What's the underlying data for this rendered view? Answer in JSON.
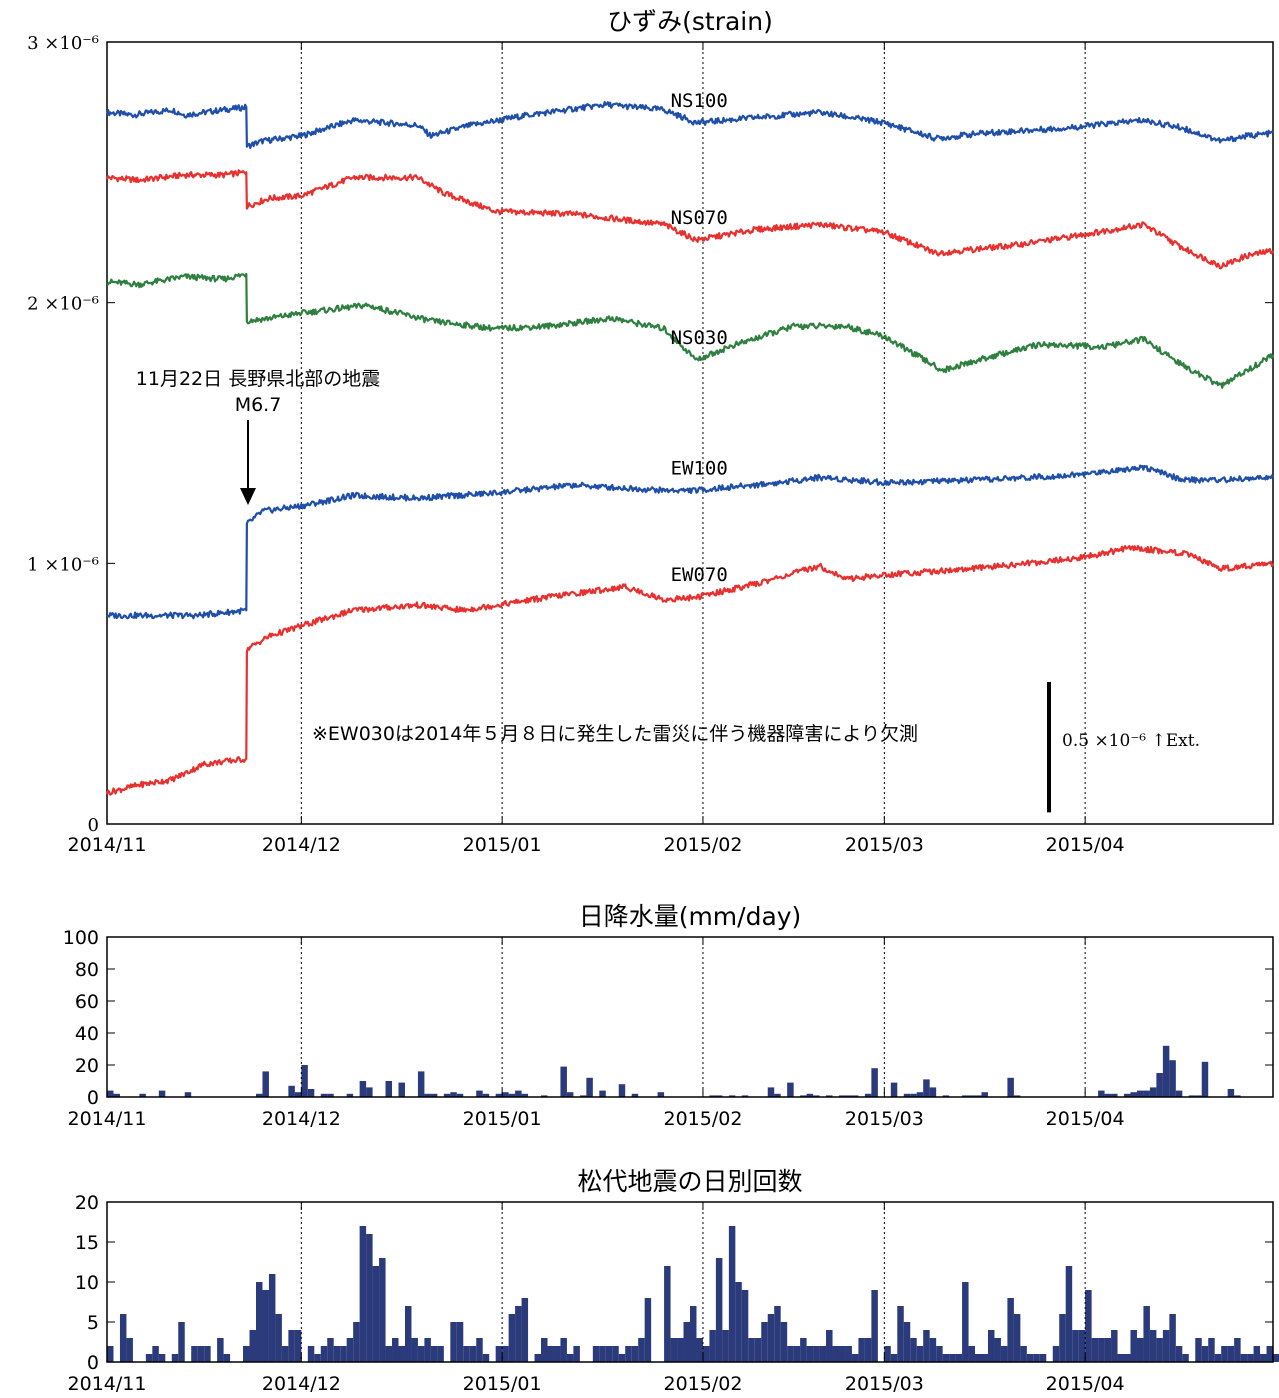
{
  "chart_data": [
    {
      "type": "line",
      "title": "ひずみ(strain)",
      "x_ticks": [
        "2014/11",
        "2014/12",
        "2015/01",
        "2015/02",
        "2015/03",
        "2015/04"
      ],
      "x_tick_days": [
        0,
        30,
        61,
        92,
        120,
        151
      ],
      "xlim_days": [
        0,
        180
      ],
      "ylim": [
        0,
        3e-06
      ],
      "y_ticks": [
        {
          "value": 0,
          "label": "0"
        },
        {
          "value": 1e-06,
          "label": "1 ×10⁻⁶"
        },
        {
          "value": 2e-06,
          "label": "2 ×10⁻⁶"
        },
        {
          "value": 3e-06,
          "label": "3 ×10⁻⁶"
        }
      ],
      "grid": "vertical dotted at month boundaries",
      "series": [
        {
          "name": "NS100",
          "color": "#1f4fa8",
          "points": [
            [
              0,
              2.73e-06
            ],
            [
              4,
              2.72e-06
            ],
            [
              10,
              2.74e-06
            ],
            [
              12,
              2.72e-06
            ],
            [
              18,
              2.74e-06
            ],
            [
              21.5,
              2.75e-06
            ],
            [
              21.6,
              2.6e-06
            ],
            [
              24,
              2.62e-06
            ],
            [
              30,
              2.64e-06
            ],
            [
              38,
              2.7e-06
            ],
            [
              48,
              2.68e-06
            ],
            [
              50,
              2.64e-06
            ],
            [
              56,
              2.68e-06
            ],
            [
              65,
              2.72e-06
            ],
            [
              77,
              2.76e-06
            ],
            [
              86,
              2.74e-06
            ],
            [
              91,
              2.69e-06
            ],
            [
              100,
              2.71e-06
            ],
            [
              110,
              2.73e-06
            ],
            [
              120,
              2.69e-06
            ],
            [
              128,
              2.63e-06
            ],
            [
              135,
              2.65e-06
            ],
            [
              148,
              2.67e-06
            ],
            [
              160,
              2.7e-06
            ],
            [
              166,
              2.67e-06
            ],
            [
              172,
              2.62e-06
            ],
            [
              176,
              2.64e-06
            ],
            [
              180,
              2.65e-06
            ]
          ]
        },
        {
          "name": "NS070",
          "color": "#e8302f",
          "points": [
            [
              0,
              2.48e-06
            ],
            [
              5,
              2.47e-06
            ],
            [
              12,
              2.49e-06
            ],
            [
              18,
              2.49e-06
            ],
            [
              21.5,
              2.5e-06
            ],
            [
              21.6,
              2.37e-06
            ],
            [
              25,
              2.4e-06
            ],
            [
              30,
              2.41e-06
            ],
            [
              38,
              2.48e-06
            ],
            [
              48,
              2.48e-06
            ],
            [
              52,
              2.42e-06
            ],
            [
              60,
              2.35e-06
            ],
            [
              72,
              2.34e-06
            ],
            [
              86,
              2.3e-06
            ],
            [
              91,
              2.24e-06
            ],
            [
              100,
              2.28e-06
            ],
            [
              110,
              2.3e-06
            ],
            [
              120,
              2.27e-06
            ],
            [
              128,
              2.19e-06
            ],
            [
              140,
              2.22e-06
            ],
            [
              148,
              2.25e-06
            ],
            [
              160,
              2.3e-06
            ],
            [
              166,
              2.21e-06
            ],
            [
              172,
              2.14e-06
            ],
            [
              176,
              2.18e-06
            ],
            [
              180,
              2.2e-06
            ]
          ]
        },
        {
          "name": "NS030",
          "color": "#2f8040",
          "points": [
            [
              0,
              2.08e-06
            ],
            [
              5,
              2.07e-06
            ],
            [
              12,
              2.1e-06
            ],
            [
              18,
              2.09e-06
            ],
            [
              21.5,
              2.11e-06
            ],
            [
              21.6,
              1.93e-06
            ],
            [
              25,
              1.94e-06
            ],
            [
              30,
              1.96e-06
            ],
            [
              40,
              1.99e-06
            ],
            [
              50,
              1.93e-06
            ],
            [
              60,
              1.9e-06
            ],
            [
              68,
              1.91e-06
            ],
            [
              78,
              1.94e-06
            ],
            [
              86,
              1.9e-06
            ],
            [
              91,
              1.78e-06
            ],
            [
              96,
              1.83e-06
            ],
            [
              106,
              1.91e-06
            ],
            [
              114,
              1.91e-06
            ],
            [
              120,
              1.87e-06
            ],
            [
              129,
              1.74e-06
            ],
            [
              136,
              1.79e-06
            ],
            [
              144,
              1.84e-06
            ],
            [
              154,
              1.83e-06
            ],
            [
              160,
              1.86e-06
            ],
            [
              166,
              1.76e-06
            ],
            [
              172,
              1.68e-06
            ],
            [
              180,
              1.8e-06
            ]
          ]
        },
        {
          "name": "EW100",
          "color": "#1f4fa8",
          "points": [
            [
              0,
              8e-07
            ],
            [
              6,
              8e-07
            ],
            [
              14,
              8e-07
            ],
            [
              21.5,
              8.2e-07
            ],
            [
              21.6,
              1.15e-06
            ],
            [
              24,
              1.2e-06
            ],
            [
              30,
              1.22e-06
            ],
            [
              38,
              1.26e-06
            ],
            [
              48,
              1.25e-06
            ],
            [
              60,
              1.27e-06
            ],
            [
              72,
              1.3e-06
            ],
            [
              86,
              1.28e-06
            ],
            [
              91,
              1.28e-06
            ],
            [
              104,
              1.31e-06
            ],
            [
              110,
              1.33e-06
            ],
            [
              120,
              1.31e-06
            ],
            [
              135,
              1.32e-06
            ],
            [
              150,
              1.34e-06
            ],
            [
              160,
              1.37e-06
            ],
            [
              166,
              1.32e-06
            ],
            [
              172,
              1.32e-06
            ],
            [
              180,
              1.33e-06
            ]
          ]
        },
        {
          "name": "EW070",
          "color": "#e8302f",
          "points": [
            [
              0,
              1.2e-07
            ],
            [
              5,
              1.5e-07
            ],
            [
              10,
              1.7e-07
            ],
            [
              15,
              2.3e-07
            ],
            [
              21.5,
              2.5e-07
            ],
            [
              21.6,
              6.7e-07
            ],
            [
              25,
              7.2e-07
            ],
            [
              30,
              7.6e-07
            ],
            [
              38,
              8.2e-07
            ],
            [
              48,
              8.4e-07
            ],
            [
              55,
              8.2e-07
            ],
            [
              68,
              8.7e-07
            ],
            [
              80,
              9.1e-07
            ],
            [
              86,
              8.6e-07
            ],
            [
              91,
              8.7e-07
            ],
            [
              100,
              9.2e-07
            ],
            [
              110,
              9.9e-07
            ],
            [
              114,
              9.4e-07
            ],
            [
              122,
              9.6e-07
            ],
            [
              134,
              9.8e-07
            ],
            [
              150,
              1.02e-06
            ],
            [
              158,
              1.06e-06
            ],
            [
              166,
              1.04e-06
            ],
            [
              172,
              9.8e-07
            ],
            [
              180,
              1e-06
            ]
          ]
        }
      ],
      "annotations": {
        "event_label": "11月22日 長野県北部の地震",
        "event_mag": "M6.7",
        "note": "※EW030は2014年５月８日に発生した雷災に伴う機器障害により欠測",
        "scale_label": "0.5 ×10⁻⁶ ↑Ext.",
        "scale_value": 5e-07
      }
    },
    {
      "type": "bar",
      "title": "日降水量(mm/day)",
      "color": "#2a3a7a",
      "ylim": [
        0,
        100
      ],
      "y_ticks": [
        "0",
        "20",
        "40",
        "60",
        "80",
        "100"
      ],
      "x_ticks": [
        "2014/11",
        "2014/12",
        "2015/01",
        "2015/02",
        "2015/03",
        "2015/04"
      ],
      "days": [
        0,
        1,
        5,
        8,
        12,
        23,
        24,
        28,
        29,
        30,
        31,
        33,
        34,
        37,
        39,
        40,
        43,
        45,
        48,
        49,
        50,
        52,
        53,
        54,
        57,
        58,
        60,
        61,
        62,
        63,
        64,
        67,
        70,
        71,
        73,
        74,
        76,
        79,
        81,
        85,
        93,
        94,
        96,
        98,
        102,
        103,
        105,
        107,
        108,
        109,
        111,
        113,
        114,
        115,
        117,
        118,
        121,
        123,
        124,
        125,
        126,
        127,
        129,
        132,
        133,
        134,
        135,
        139,
        140,
        153,
        154,
        155,
        157,
        158,
        159,
        160,
        161,
        162,
        163,
        164,
        165,
        167,
        168,
        169,
        173,
        174
      ],
      "values": [
        4,
        2,
        2,
        4,
        3,
        2,
        16,
        7,
        3,
        20,
        5,
        2,
        2,
        2,
        10,
        6,
        10,
        9,
        16,
        2,
        2,
        2,
        3,
        2,
        4,
        2,
        2,
        3,
        2,
        4,
        2,
        1,
        19,
        3,
        1,
        12,
        4,
        8,
        2,
        3,
        1,
        1,
        1,
        1,
        6,
        2,
        9,
        1,
        2,
        1,
        1,
        1,
        1,
        1,
        2,
        18,
        9,
        2,
        2,
        3,
        11,
        6,
        1,
        1,
        1,
        1,
        3,
        12,
        1,
        4,
        2,
        2,
        2,
        3,
        4,
        4,
        6,
        15,
        32,
        23,
        4,
        1,
        1,
        22,
        5,
        1
      ]
    },
    {
      "type": "bar",
      "title": "松代地震の日別回数",
      "color": "#2a3a7a",
      "ylim": [
        0,
        20
      ],
      "y_ticks": [
        "0",
        "5",
        "10",
        "15",
        "20"
      ],
      "x_ticks": [
        "2014/11",
        "2014/12",
        "2015/01",
        "2015/02",
        "2015/03",
        "2015/04"
      ],
      "values": [
        2,
        0,
        6,
        3,
        0,
        0,
        1,
        2,
        1,
        0,
        1,
        5,
        0,
        2,
        2,
        2,
        0,
        3,
        1,
        0,
        0,
        2,
        4,
        10,
        9,
        11,
        6,
        2,
        4,
        4,
        0,
        2,
        1,
        2,
        3,
        2,
        2,
        3,
        5,
        17,
        16,
        12,
        13,
        2,
        3,
        2,
        7,
        3,
        2,
        3,
        2,
        2,
        0,
        5,
        5,
        2,
        2,
        3,
        1,
        0,
        2,
        2,
        6,
        7,
        8,
        0,
        1,
        3,
        2,
        2,
        3,
        1,
        2,
        0,
        0,
        2,
        2,
        2,
        2,
        1,
        2,
        2,
        3,
        8,
        0,
        0,
        12,
        3,
        3,
        5,
        7,
        3,
        2,
        4,
        13,
        4,
        17,
        10,
        9,
        3,
        3,
        5,
        6,
        7,
        5,
        2,
        2,
        3,
        2,
        2,
        2,
        4,
        2,
        2,
        2,
        1,
        3,
        3,
        9,
        0,
        2,
        1,
        7,
        5,
        3,
        2,
        4,
        3,
        2,
        1,
        1,
        1,
        10,
        2,
        1,
        1,
        4,
        3,
        2,
        8,
        6,
        2,
        1,
        1,
        1,
        0,
        2,
        6,
        12,
        4,
        4,
        9,
        3,
        3,
        3,
        4,
        1,
        1,
        4,
        3,
        7,
        4,
        3,
        4,
        6,
        2,
        1,
        0,
        3,
        2,
        3,
        1,
        2,
        2,
        3,
        1,
        1,
        2,
        1,
        2,
        1,
        2,
        2,
        0,
        2,
        2,
        1,
        0
      ]
    }
  ]
}
